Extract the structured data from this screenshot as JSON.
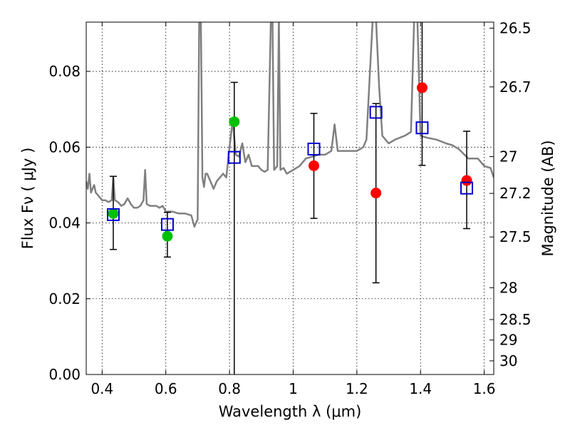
{
  "chart_data": {
    "type": "scatter",
    "xlabel": "Wavelength  λ (μm)",
    "ylabel": "Flux  Fν  ( μJy )",
    "ylabel_right": "Magnitude (AB)",
    "xlim": [
      0.35,
      1.63
    ],
    "ylim": [
      0.0,
      0.093
    ],
    "grid": true,
    "x_ticks": [
      0.4,
      0.6,
      0.8,
      1.0,
      1.2,
      1.4,
      1.6
    ],
    "x_tick_labels": [
      "0.4",
      "0.6",
      "0.8",
      "1",
      "1.2",
      "1.4",
      "1.6"
    ],
    "y_ticks": [
      0.0,
      0.02,
      0.04,
      0.06,
      0.08
    ],
    "y_tick_labels": [
      "0.00",
      "0.02",
      "0.04",
      "0.06",
      "0.08"
    ],
    "right_ticks": [
      {
        "flux": 0.0914,
        "label": "26.5"
      },
      {
        "flux": 0.0759,
        "label": "26.7"
      },
      {
        "flux": 0.0575,
        "label": "27"
      },
      {
        "flux": 0.0478,
        "label": "27.2"
      },
      {
        "flux": 0.0363,
        "label": "27.5"
      },
      {
        "flux": 0.0229,
        "label": "28"
      },
      {
        "flux": 0.0145,
        "label": "28.5"
      },
      {
        "flux": 0.0091,
        "label": "29"
      },
      {
        "flux": 0.0036,
        "label": "30"
      }
    ],
    "series": [
      {
        "marker": "circle",
        "color": "#00c000",
        "x": [
          0.435,
          0.605,
          0.815
        ],
        "y": [
          0.0425,
          0.0365,
          0.0667
        ],
        "yerr_low": [
          0.033,
          0.031,
          0.0
        ],
        "yerr_high": [
          0.0523,
          0.0428,
          0.0771
        ]
      },
      {
        "marker": "circle",
        "color": "#ff0000",
        "x": [
          1.065,
          1.26,
          1.405,
          1.545
        ],
        "y": [
          0.0551,
          0.0479,
          0.0757,
          0.0512
        ],
        "yerr_low": [
          0.0412,
          0.0242,
          0.0552,
          0.0385
        ],
        "yerr_high": [
          0.0689,
          0.0715,
          0.095,
          0.0642
        ]
      },
      {
        "marker": "square",
        "color": "#0000cc",
        "x": [
          0.435,
          0.605,
          0.815,
          1.065,
          1.26,
          1.405,
          1.545
        ],
        "y": [
          0.0422,
          0.0396,
          0.0573,
          0.0595,
          0.0692,
          0.0651,
          0.0492
        ]
      }
    ],
    "model_spectrum": {
      "color": "#808080",
      "x": [
        0.35,
        0.355,
        0.36,
        0.365,
        0.37,
        0.375,
        0.38,
        0.39,
        0.4,
        0.41,
        0.42,
        0.43,
        0.435,
        0.44,
        0.45,
        0.46,
        0.47,
        0.48,
        0.49,
        0.5,
        0.51,
        0.52,
        0.53,
        0.535,
        0.54,
        0.55,
        0.56,
        0.57,
        0.58,
        0.59,
        0.6,
        0.62,
        0.64,
        0.66,
        0.68,
        0.69,
        0.7,
        0.705,
        0.71,
        0.715,
        0.72,
        0.725,
        0.73,
        0.74,
        0.75,
        0.76,
        0.77,
        0.78,
        0.79,
        0.8,
        0.81,
        0.82,
        0.83,
        0.84,
        0.85,
        0.86,
        0.87,
        0.88,
        0.89,
        0.9,
        0.91,
        0.92,
        0.93,
        0.935,
        0.94,
        0.95,
        0.955,
        0.96,
        0.97,
        0.98,
        1.0,
        1.02,
        1.04,
        1.06,
        1.08,
        1.1,
        1.12,
        1.13,
        1.14,
        1.16,
        1.18,
        1.2,
        1.22,
        1.23,
        1.24,
        1.25,
        1.26,
        1.27,
        1.28,
        1.3,
        1.32,
        1.35,
        1.37,
        1.38,
        1.39,
        1.4,
        1.42,
        1.45,
        1.48,
        1.5,
        1.52,
        1.55,
        1.58,
        1.6,
        1.62,
        1.63
      ],
      "y": [
        0.051,
        0.049,
        0.053,
        0.048,
        0.049,
        0.05,
        0.048,
        0.047,
        0.046,
        0.046,
        0.0455,
        0.046,
        0.052,
        0.046,
        0.0455,
        0.0445,
        0.045,
        0.0465,
        0.045,
        0.044,
        0.044,
        0.0445,
        0.046,
        0.054,
        0.045,
        0.0445,
        0.0445,
        0.0445,
        0.044,
        0.0445,
        0.043,
        0.043,
        0.0425,
        0.0425,
        0.042,
        0.039,
        0.041,
        0.094,
        0.094,
        0.052,
        0.0495,
        0.053,
        0.053,
        0.051,
        0.049,
        0.051,
        0.052,
        0.053,
        0.052,
        0.06,
        0.067,
        0.058,
        0.0575,
        0.061,
        0.056,
        0.058,
        0.055,
        0.055,
        0.055,
        0.054,
        0.0535,
        0.054,
        0.094,
        0.094,
        0.054,
        0.055,
        0.094,
        0.054,
        0.0545,
        0.053,
        0.054,
        0.055,
        0.057,
        0.0575,
        0.058,
        0.058,
        0.059,
        0.066,
        0.059,
        0.059,
        0.059,
        0.059,
        0.06,
        0.062,
        0.078,
        0.094,
        0.094,
        0.076,
        0.063,
        0.061,
        0.062,
        0.063,
        0.064,
        0.094,
        0.094,
        0.063,
        0.0625,
        0.062,
        0.061,
        0.0605,
        0.0595,
        0.057,
        0.057,
        0.055,
        0.0545,
        0.052
      ]
    }
  }
}
